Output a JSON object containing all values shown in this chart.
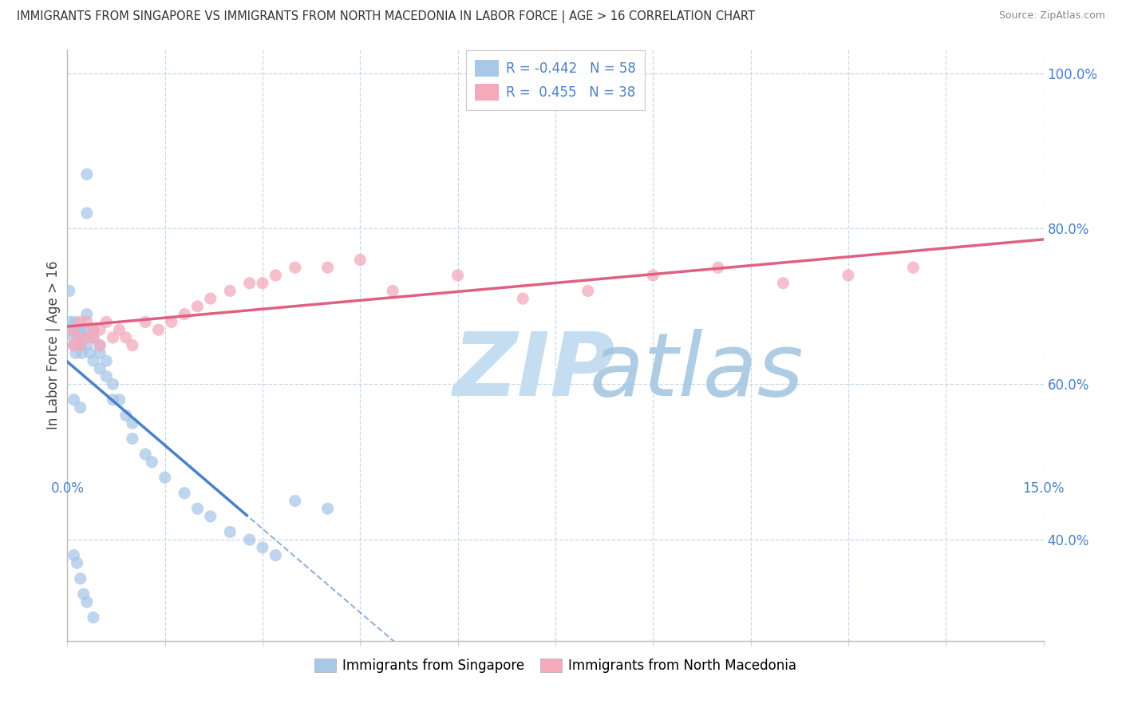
{
  "title": "IMMIGRANTS FROM SINGAPORE VS IMMIGRANTS FROM NORTH MACEDONIA IN LABOR FORCE | AGE > 16 CORRELATION CHART",
  "source": "Source: ZipAtlas.com",
  "ylabel": "In Labor Force | Age > 16",
  "r_singapore": -0.442,
  "n_singapore": 58,
  "r_north_macedonia": 0.455,
  "n_north_macedonia": 38,
  "color_singapore": "#a8c8e8",
  "color_north_macedonia": "#f4aabb",
  "trend_singapore_color": "#4a80c8",
  "trend_north_macedonia_color": "#e06080",
  "watermark_zip": "ZIP",
  "watermark_atlas": "atlas",
  "xlim": [
    0.0,
    0.15
  ],
  "ylim": [
    0.27,
    1.03
  ],
  "yticks": [
    0.4,
    0.6,
    0.8,
    1.0
  ],
  "ytick_labels": [
    "40.0%",
    "60.0%",
    "80.0%",
    "100.0%"
  ],
  "background_color": "#ffffff",
  "grid_color": "#c8d8e8",
  "axis_color": "#4a80c8",
  "sg_x": [
    0.0002,
    0.0003,
    0.0005,
    0.0007,
    0.001,
    0.001,
    0.001,
    0.0012,
    0.0013,
    0.0015,
    0.0017,
    0.0018,
    0.002,
    0.002,
    0.002,
    0.002,
    0.0022,
    0.0025,
    0.003,
    0.003,
    0.003,
    0.003,
    0.003,
    0.0035,
    0.004,
    0.004,
    0.004,
    0.005,
    0.005,
    0.005,
    0.006,
    0.006,
    0.007,
    0.007,
    0.008,
    0.009,
    0.01,
    0.01,
    0.012,
    0.013,
    0.015,
    0.018,
    0.02,
    0.022,
    0.025,
    0.028,
    0.03,
    0.032,
    0.035,
    0.04,
    0.001,
    0.0015,
    0.002,
    0.0025,
    0.003,
    0.004,
    0.002,
    0.001
  ],
  "sg_y": [
    0.67,
    0.72,
    0.68,
    0.67,
    0.67,
    0.66,
    0.65,
    0.68,
    0.64,
    0.67,
    0.65,
    0.67,
    0.67,
    0.66,
    0.65,
    0.67,
    0.64,
    0.66,
    0.87,
    0.82,
    0.69,
    0.67,
    0.65,
    0.64,
    0.67,
    0.66,
    0.63,
    0.65,
    0.64,
    0.62,
    0.63,
    0.61,
    0.6,
    0.58,
    0.58,
    0.56,
    0.55,
    0.53,
    0.51,
    0.5,
    0.48,
    0.46,
    0.44,
    0.43,
    0.41,
    0.4,
    0.39,
    0.38,
    0.45,
    0.44,
    0.38,
    0.37,
    0.35,
    0.33,
    0.32,
    0.3,
    0.57,
    0.58
  ],
  "nm_x": [
    0.001,
    0.001,
    0.0015,
    0.002,
    0.002,
    0.003,
    0.003,
    0.004,
    0.004,
    0.005,
    0.005,
    0.006,
    0.007,
    0.008,
    0.009,
    0.01,
    0.012,
    0.014,
    0.016,
    0.018,
    0.02,
    0.022,
    0.025,
    0.028,
    0.03,
    0.032,
    0.035,
    0.04,
    0.045,
    0.05,
    0.06,
    0.07,
    0.08,
    0.09,
    0.1,
    0.11,
    0.12,
    0.13
  ],
  "nm_y": [
    0.65,
    0.67,
    0.66,
    0.65,
    0.68,
    0.66,
    0.68,
    0.67,
    0.66,
    0.67,
    0.65,
    0.68,
    0.66,
    0.67,
    0.66,
    0.65,
    0.68,
    0.67,
    0.68,
    0.69,
    0.7,
    0.71,
    0.72,
    0.73,
    0.73,
    0.74,
    0.75,
    0.75,
    0.76,
    0.72,
    0.74,
    0.71,
    0.72,
    0.74,
    0.75,
    0.73,
    0.74,
    0.75
  ]
}
